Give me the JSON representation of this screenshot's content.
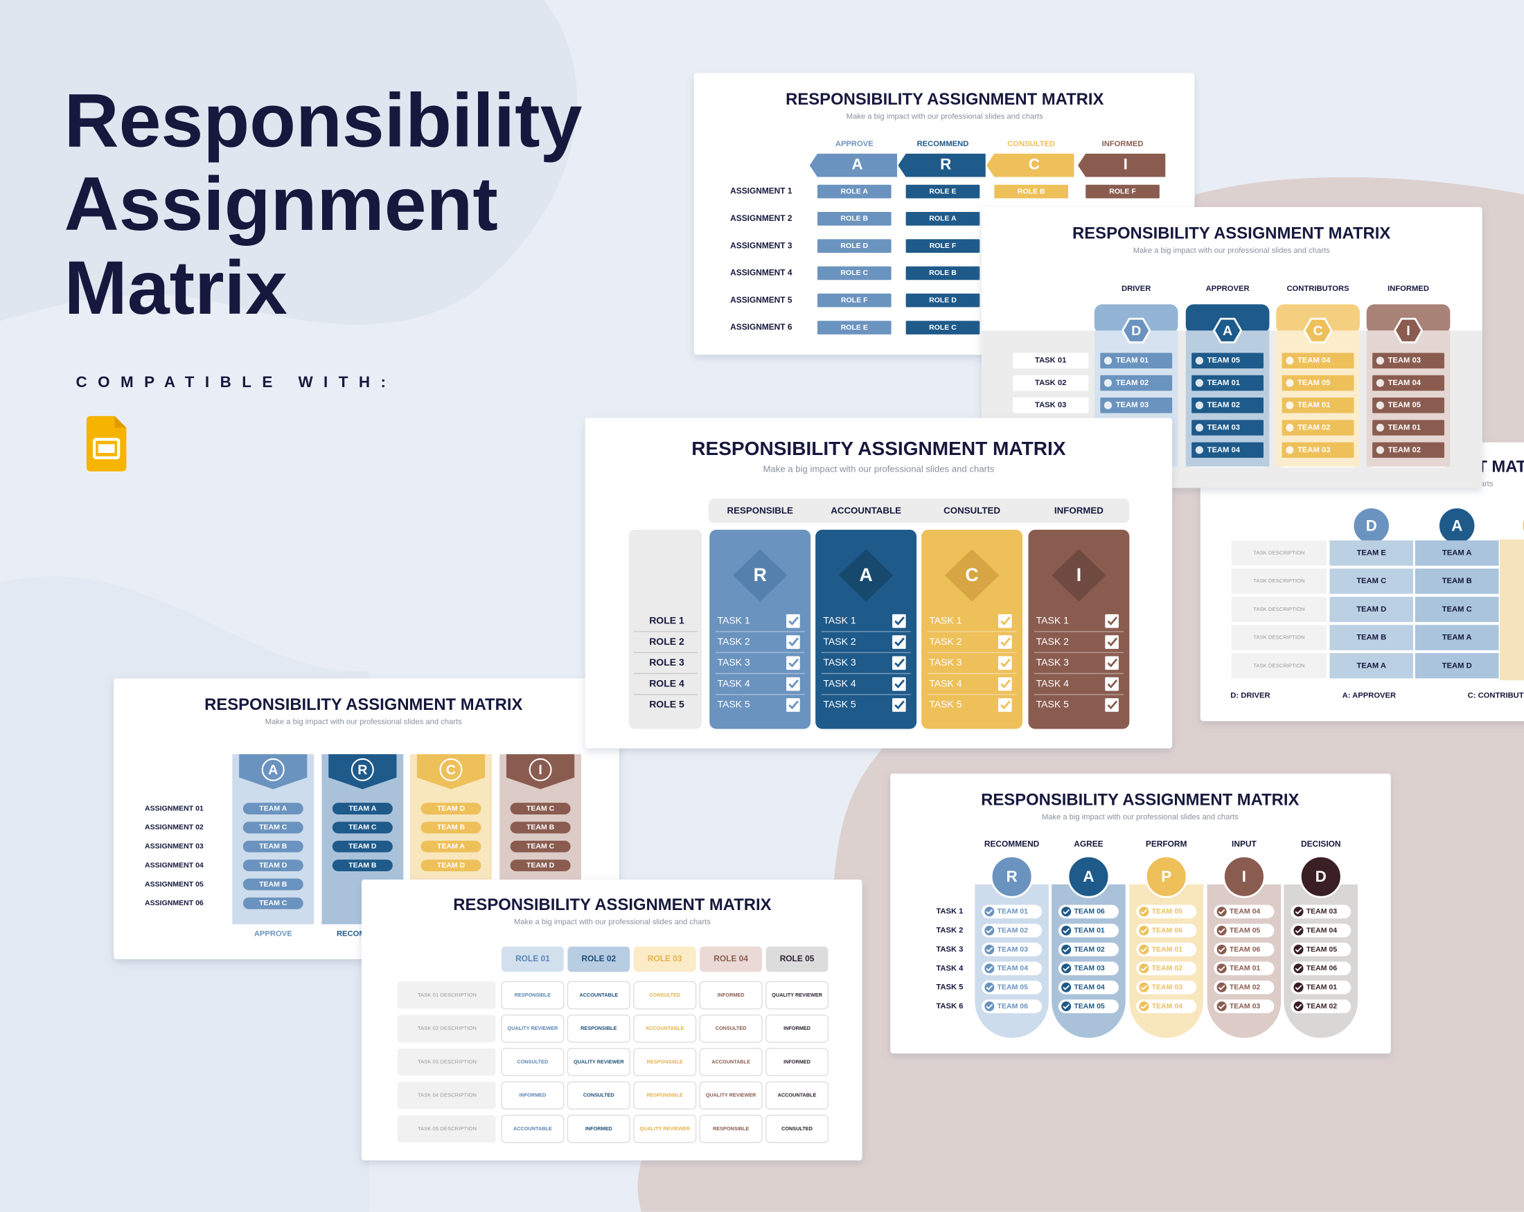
{
  "hero": {
    "title": [
      "Responsibility",
      "Assignment",
      "Matrix"
    ],
    "compatible": "COMPATIBLE WITH:"
  },
  "slides": [
    {
      "title": "RESPONSIBILITY ASSIGNMENT MATRIX",
      "subtitle": "Make a big impact with our professional slides and charts",
      "columns": [
        {
          "label": "APPROVE",
          "letter": "A",
          "cells": [
            "ROLE A",
            "ROLE B",
            "ROLE D",
            "ROLE C",
            "ROLE F",
            "ROLE E"
          ]
        },
        {
          "label": "RECOMMEND",
          "letter": "R",
          "cells": [
            "ROLE E",
            "ROLE A",
            "ROLE F",
            "ROLE B",
            "ROLE D",
            "ROLE C"
          ]
        },
        {
          "label": "CONSULTED",
          "letter": "C",
          "cells": [
            "ROLE B"
          ]
        },
        {
          "label": "INFORMED",
          "letter": "I",
          "cells": [
            "ROLE F"
          ]
        }
      ],
      "rows": [
        "ASSIGNMENT 1",
        "ASSIGNMENT 2",
        "ASSIGNMENT 3",
        "ASSIGNMENT 4",
        "ASSIGNMENT 5",
        "ASSIGNMENT 6"
      ]
    },
    {
      "title": "RESPONSIBILITY ASSIGNMENT MATRIX",
      "subtitle": "Make a big impact with our professional slides and charts",
      "columns": [
        {
          "letter": "D",
          "cells": [
            "TEAM E",
            "TEAM C",
            "TEAM D",
            "TEAM B",
            "TEAM A"
          ]
        },
        {
          "letter": "A",
          "cells": [
            "TEAM A",
            "TEAM B",
            "TEAM C",
            "TEAM A",
            "TEAM D"
          ]
        }
      ],
      "rows": [
        "TASK DESCRIPTION",
        "TASK DESCRIPTION",
        "TASK DESCRIPTION",
        "TASK DESCRIPTION",
        "TASK DESCRIPTION"
      ],
      "legend": [
        "D: DRIVER",
        "A: APPROVER",
        "C: CONTRIBUTOR"
      ]
    },
    {
      "title": "RESPONSIBILITY ASSIGNMENT MATRIX",
      "subtitle": "Make a big impact with our professional slides and charts",
      "columns": [
        {
          "label": "DRIVER",
          "letter": "D",
          "cells": [
            "TEAM 01",
            "TEAM 02",
            "TEAM 03"
          ]
        },
        {
          "label": "APPROVER",
          "letter": "A",
          "cells": [
            "TEAM 05",
            "TEAM 01",
            "TEAM 02",
            "TEAM 03",
            "TEAM 04"
          ]
        },
        {
          "label": "CONTRIBUTORS",
          "letter": "C",
          "cells": [
            "TEAM 04",
            "TEAM 05",
            "TEAM 01",
            "TEAM 02",
            "TEAM 03"
          ]
        },
        {
          "label": "INFORMED",
          "letter": "I",
          "cells": [
            "TEAM 03",
            "TEAM 04",
            "TEAM 05",
            "TEAM 01",
            "TEAM 02"
          ]
        }
      ],
      "rows": [
        "TASK 01",
        "TASK 02",
        "TASK 03"
      ]
    },
    {
      "title": "RESPONSIBILITY ASSIGNMENT MATRIX",
      "subtitle": "Make a big impact with our professional slides and charts",
      "columns": [
        {
          "label": "RESPONSIBLE",
          "letter": "R"
        },
        {
          "label": "ACCOUNTABLE",
          "letter": "A"
        },
        {
          "label": "CONSULTED",
          "letter": "C"
        },
        {
          "label": "INFORMED",
          "letter": "I"
        }
      ],
      "tasks": [
        "TASK 1",
        "TASK 2",
        "TASK 3",
        "TASK 4",
        "TASK 5"
      ],
      "rows": [
        "ROLE 1",
        "ROLE 2",
        "ROLE 3",
        "ROLE 4",
        "ROLE 5"
      ]
    },
    {
      "title": "RESPONSIBILITY ASSIGNMENT MATRIX",
      "subtitle": "Make a big impact with our professional slides and charts",
      "columns": [
        {
          "label": "APPROVE",
          "letter": "A",
          "cells": [
            "TEAM A",
            "TEAM C",
            "TEAM B",
            "TEAM D",
            "TEAM B",
            "TEAM C"
          ]
        },
        {
          "label": "RECOMMEND",
          "letter": "R",
          "cells": [
            "TEAM A",
            "TEAM C",
            "TEAM D",
            "TEAM B"
          ]
        },
        {
          "letter": "C",
          "cells": [
            "TEAM D",
            "TEAM B",
            "TEAM A",
            "TEAM D"
          ]
        },
        {
          "letter": "I",
          "cells": [
            "TEAM C",
            "TEAM B",
            "TEAM C",
            "TEAM D"
          ]
        }
      ],
      "rows": [
        "ASSIGNMENT 01",
        "ASSIGNMENT 02",
        "ASSIGNMENT 03",
        "ASSIGNMENT 04",
        "ASSIGNMENT 05",
        "ASSIGNMENT 06"
      ]
    },
    {
      "title": "RESPONSIBILITY ASSIGNMENT MATRIX",
      "subtitle": "Make a big impact with our professional slides and charts",
      "roles": [
        "ROLE 01",
        "ROLE 02",
        "ROLE 03",
        "ROLE 04",
        "ROLE 05"
      ],
      "rows": [
        {
          "task": "TASK 01 DESCRIPTION",
          "cells": [
            "RESPONSIBLE",
            "ACCOUNTABLE",
            "CONSULTED",
            "INFORMED",
            "QUALITY REVIEWER"
          ]
        },
        {
          "task": "TASK 02 DESCRIPTION",
          "cells": [
            "QUALITY REVIEWER",
            "RESPONSIBLE",
            "ACCOUNTABLE",
            "CONSULTED",
            "INFORMED"
          ]
        },
        {
          "task": "TASK 03 DESCRIPTION",
          "cells": [
            "CONSULTED",
            "QUALITY REVIEWER",
            "RESPONSIBLE",
            "ACCOUNTABLE",
            "INFORMED"
          ]
        },
        {
          "task": "TASK 04 DESCRIPTION",
          "cells": [
            "INFORMED",
            "CONSULTED",
            "RESPONSIBLE",
            "QUALITY REVIEWER",
            "ACCOUNTABLE"
          ]
        },
        {
          "task": "TASK 05 DESCRIPTION",
          "cells": [
            "ACCOUNTABLE",
            "INFORMED",
            "QUALITY REVIEWER",
            "RESPONSIBLE",
            "CONSULTED"
          ]
        }
      ]
    },
    {
      "title": "RESPONSIBILITY ASSIGNMENT MATRIX",
      "subtitle": "Make a big impact with our professional slides and charts",
      "columns": [
        {
          "label": "RECOMMEND",
          "letter": "R",
          "cells": [
            "TEAM 01",
            "TEAM 02",
            "TEAM 03",
            "TEAM 04",
            "TEAM 05",
            "TEAM 06"
          ]
        },
        {
          "label": "AGREE",
          "letter": "A",
          "cells": [
            "TEAM 06",
            "TEAM 01",
            "TEAM 02",
            "TEAM 03",
            "TEAM 04",
            "TEAM 05"
          ]
        },
        {
          "label": "PERFORM",
          "letter": "P",
          "cells": [
            "TEAM 05",
            "TEAM 06",
            "TEAM 01",
            "TEAM 02",
            "TEAM 03",
            "TEAM 04"
          ]
        },
        {
          "label": "INPUT",
          "letter": "I",
          "cells": [
            "TEAM 04",
            "TEAM 05",
            "TEAM 06",
            "TEAM 01",
            "TEAM 02",
            "TEAM 03"
          ]
        },
        {
          "label": "DECISION",
          "letter": "D",
          "cells": [
            "TEAM 03",
            "TEAM 04",
            "TEAM 05",
            "TEAM 06",
            "TEAM 01",
            "TEAM 02"
          ]
        }
      ],
      "rows": [
        "TASK 1",
        "TASK 2",
        "TASK 3",
        "TASK 4",
        "TASK 5",
        "TASK 6"
      ]
    }
  ]
}
